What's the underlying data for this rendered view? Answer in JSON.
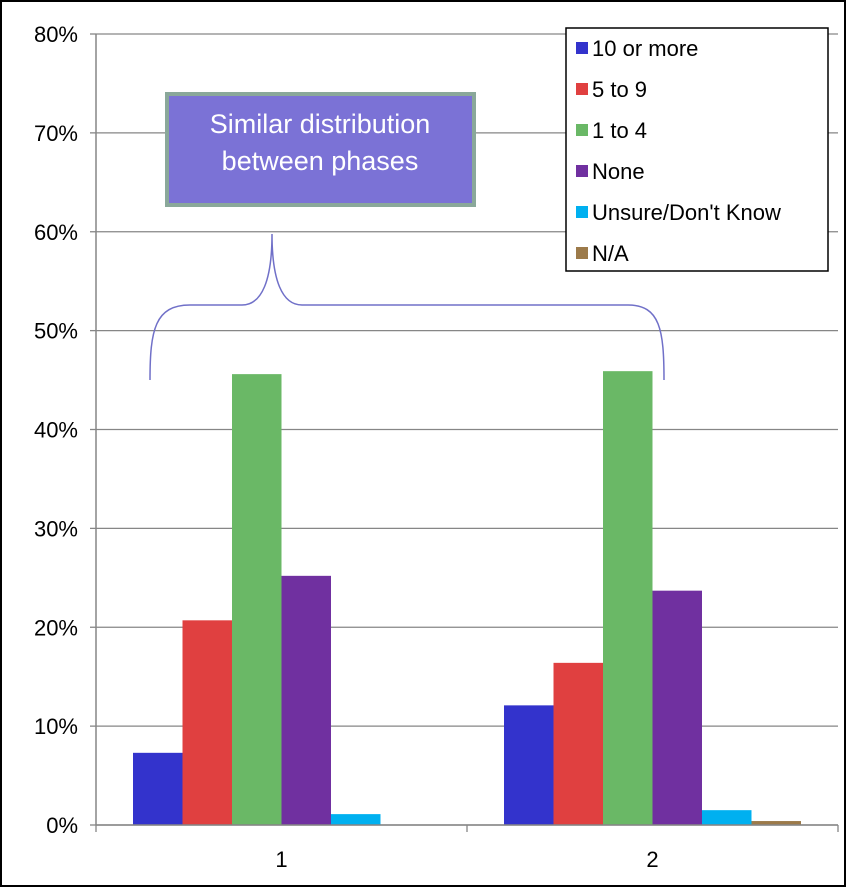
{
  "chart_data": {
    "type": "bar",
    "categories": [
      "1",
      "2"
    ],
    "ylim": [
      0,
      0.8
    ],
    "yticks": [
      "0%",
      "10%",
      "20%",
      "30%",
      "40%",
      "50%",
      "60%",
      "70%",
      "80%"
    ],
    "grid": true,
    "legend_position": "top-right",
    "series": [
      {
        "name": "10 or more",
        "color": "#3333cc",
        "values": [
          0.073,
          0.121
        ]
      },
      {
        "name": "5 to 9",
        "color": "#e04040",
        "values": [
          0.207,
          0.164
        ]
      },
      {
        "name": "1 to 4",
        "color": "#6ab866",
        "values": [
          0.456,
          0.459
        ]
      },
      {
        "name": "None",
        "color": "#7030a0",
        "values": [
          0.252,
          0.237
        ]
      },
      {
        "name": "Unsure/Don't Know",
        "color": "#00b0f0",
        "values": [
          0.011,
          0.015
        ]
      },
      {
        "name": "N/A",
        "color": "#9c7a4a",
        "values": [
          0.0,
          0.004
        ]
      }
    ],
    "annotation": {
      "lines": [
        "Similar distribution",
        "between phases"
      ],
      "box_fill": "#7b72d6",
      "box_border": "#8aa89a",
      "brace_color": "#7070c8"
    }
  }
}
